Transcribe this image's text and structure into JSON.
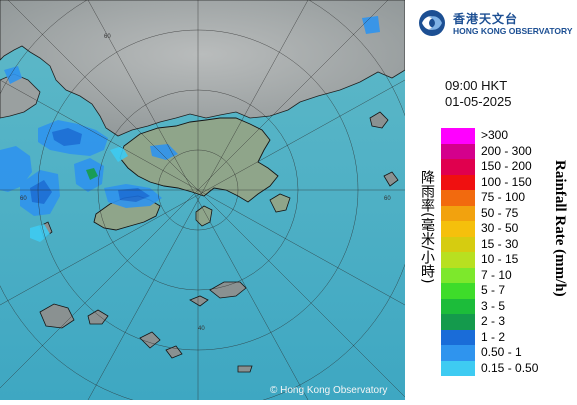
{
  "organization": {
    "name_cn": "香港天文台",
    "name_en": "HONG KONG OBSERVATORY",
    "logo_icon": "hko-swirl-logo-icon"
  },
  "map": {
    "time": "09:00 HKT",
    "date": "01-05-2025",
    "copyright": "© Hong Kong Observatory",
    "range_labels": [
      "40",
      "60"
    ]
  },
  "legend": {
    "title_cn": "降雨率(毫米/小時)",
    "title_en": "Rainfall Rate (mm/h)",
    "items": [
      {
        "label": ">300",
        "color": "#ff00ff"
      },
      {
        "label": "200 - 300",
        "color": "#d4008c"
      },
      {
        "label": "150 - 200",
        "color": "#e0004e"
      },
      {
        "label": "100 - 150",
        "color": "#f01010"
      },
      {
        "label": "75 - 100",
        "color": "#f26a0e"
      },
      {
        "label": "50 - 75",
        "color": "#f2a20e"
      },
      {
        "label": "30 - 50",
        "color": "#f5c00c"
      },
      {
        "label": "15 - 30",
        "color": "#d6cc10"
      },
      {
        "label": "10 - 15",
        "color": "#b8e020"
      },
      {
        "label": "7 - 10",
        "color": "#7de82c"
      },
      {
        "label": "5 - 7",
        "color": "#3edc2a"
      },
      {
        "label": "3 - 5",
        "color": "#1cbc3a"
      },
      {
        "label": "2 - 3",
        "color": "#149a4c"
      },
      {
        "label": "1 - 2",
        "color": "#1a6cd8"
      },
      {
        "label": "0.50 - 1",
        "color": "#2f94ee"
      },
      {
        "label": "0.15 - 0.50",
        "color": "#3ecbf2"
      }
    ]
  }
}
